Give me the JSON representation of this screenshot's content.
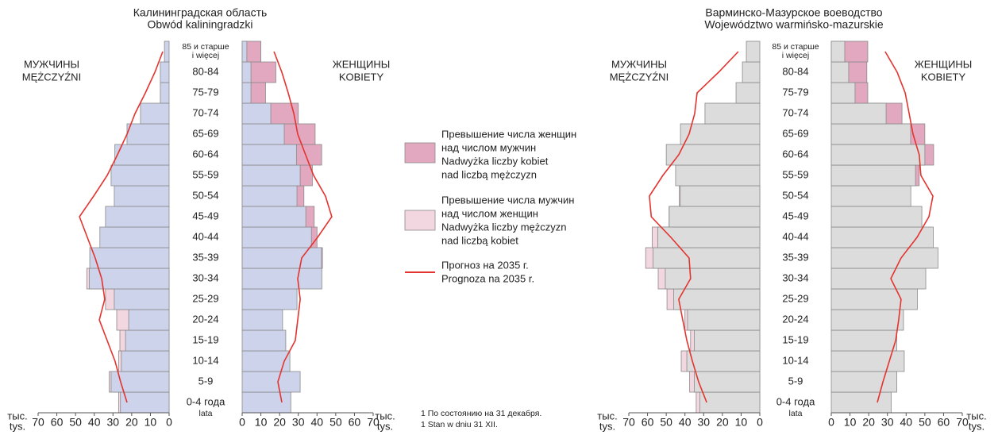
{
  "chart_data": [
    {
      "type": "pyramid",
      "title": [
        "Калининградская область",
        "Obwód kaliningradzki"
      ],
      "categories": [
        [
          "0-4 года",
          "lata"
        ],
        "5-9",
        "10-14",
        "15-19",
        "20-24",
        "25-29",
        "30-34",
        "35-39",
        "40-44",
        "45-49",
        "50-54",
        "55-59",
        "60-64",
        "65-69",
        "70-74",
        "75-79",
        "80-84",
        [
          "85 и старше",
          "i więcej"
        ]
      ],
      "bar_color": "#cdd3ea",
      "men": {
        "label": [
          "МУЖЧИНЫ",
          "MĘŻCZYŹNI"
        ],
        "values": [
          27,
          32,
          27,
          26.3,
          28,
          34,
          44,
          42.4,
          37,
          34,
          29.3,
          31,
          29,
          22.5,
          15.3,
          4.7,
          4.7,
          2.5
        ]
      },
      "women": {
        "label": [
          "ЖЕНЩИНЫ",
          "KOBIETY"
        ],
        "values": [
          26,
          31,
          25.5,
          23.3,
          21.6,
          29.3,
          42.6,
          42.9,
          40,
          38.5,
          33,
          37.5,
          42.5,
          39,
          30,
          12.5,
          18,
          10
        ]
      },
      "forecast_men": [
        22.5,
        25.9,
        28.9,
        33.1,
        37.3,
        34.4,
        36,
        39.5,
        43.7,
        47.9,
        40.3,
        33.1,
        27.6,
        22.5,
        18.2,
        12.7,
        7.6,
        3.4
      ],
      "forecast_women": [
        21.2,
        19.1,
        22.5,
        28.4,
        29.7,
        31,
        29.7,
        31.8,
        40.3,
        47.9,
        44.5,
        38.2,
        33.9,
        29.7,
        27.6,
        24.6,
        21.2,
        17
      ],
      "xlim": [
        0,
        70
      ],
      "xticks": [
        0,
        10,
        20,
        30,
        40,
        50,
        60,
        70
      ],
      "unit": [
        "тыс.",
        "tys."
      ]
    },
    {
      "type": "pyramid",
      "title": [
        "Варминско-Мазурское воеводство",
        "Województwo warmińsko-mazurskie"
      ],
      "categories": [
        [
          "0-4 года",
          "lata"
        ],
        "5-9",
        "10-14",
        "15-19",
        "20-24",
        "25-29",
        "30-34",
        "35-39",
        "40-44",
        "45-49",
        "50-54",
        "55-59",
        "60-64",
        "65-69",
        "70-74",
        "75-79",
        "80-84",
        [
          "85 и старше",
          "i więcej"
        ]
      ],
      "bar_color": "#dcdcdc",
      "men": {
        "label": [
          "МУЖЧИНЫ",
          "MĘŻCZYŹNI"
        ],
        "values": [
          34,
          37.5,
          42,
          37,
          40,
          49.6,
          54.3,
          61,
          57.5,
          48.5,
          43,
          45,
          50,
          42.4,
          29.3,
          12.7,
          9.3,
          7.2
        ]
      },
      "women": {
        "label": [
          "ЖЕНЩИНЫ",
          "KOBIETY"
        ],
        "values": [
          32,
          35,
          39,
          35,
          38.6,
          46,
          50.5,
          57,
          54.5,
          48.4,
          42.5,
          47,
          54.7,
          50,
          37.8,
          19.5,
          19,
          19.5
        ]
      },
      "forecast_men": [
        28.4,
        32.7,
        36,
        39,
        41.2,
        43.3,
        37,
        37.8,
        47.5,
        58,
        59,
        51.8,
        43.3,
        37.8,
        34.8,
        33.5,
        22,
        11.5
      ],
      "forecast_women": [
        24.6,
        27.6,
        31,
        34.4,
        36,
        37.3,
        31.8,
        37.3,
        45.8,
        52.2,
        54.3,
        47.9,
        47,
        43.7,
        41.6,
        39.5,
        35.2,
        28.8
      ],
      "xlim": [
        0,
        70
      ],
      "xticks": [
        0,
        10,
        20,
        30,
        40,
        50,
        60,
        70
      ],
      "unit": [
        "тыс.",
        "tys."
      ]
    }
  ],
  "legend": {
    "women_excess": {
      "color": "#e2a8bf",
      "lines": [
        "Превышение числа женщин",
        "над числом мужчин",
        "Nadwyżka liczby kobiet",
        "nad liczbą mężczyzn"
      ]
    },
    "men_excess": {
      "color": "#f2d6e0",
      "lines": [
        "Превышение числа мужчин",
        "над числом женщин",
        "Nadwyżka liczby mężczyzn",
        "nad liczbą kobiet"
      ]
    },
    "forecast": {
      "color": "#e3342f",
      "lines": [
        "Прогноз на 2035 г.",
        "Prognoza na 2035 r."
      ]
    }
  },
  "footnotes": [
    "1  По состоянию на 31 декабря.",
    "1  Stan w dniu 31 XII."
  ]
}
